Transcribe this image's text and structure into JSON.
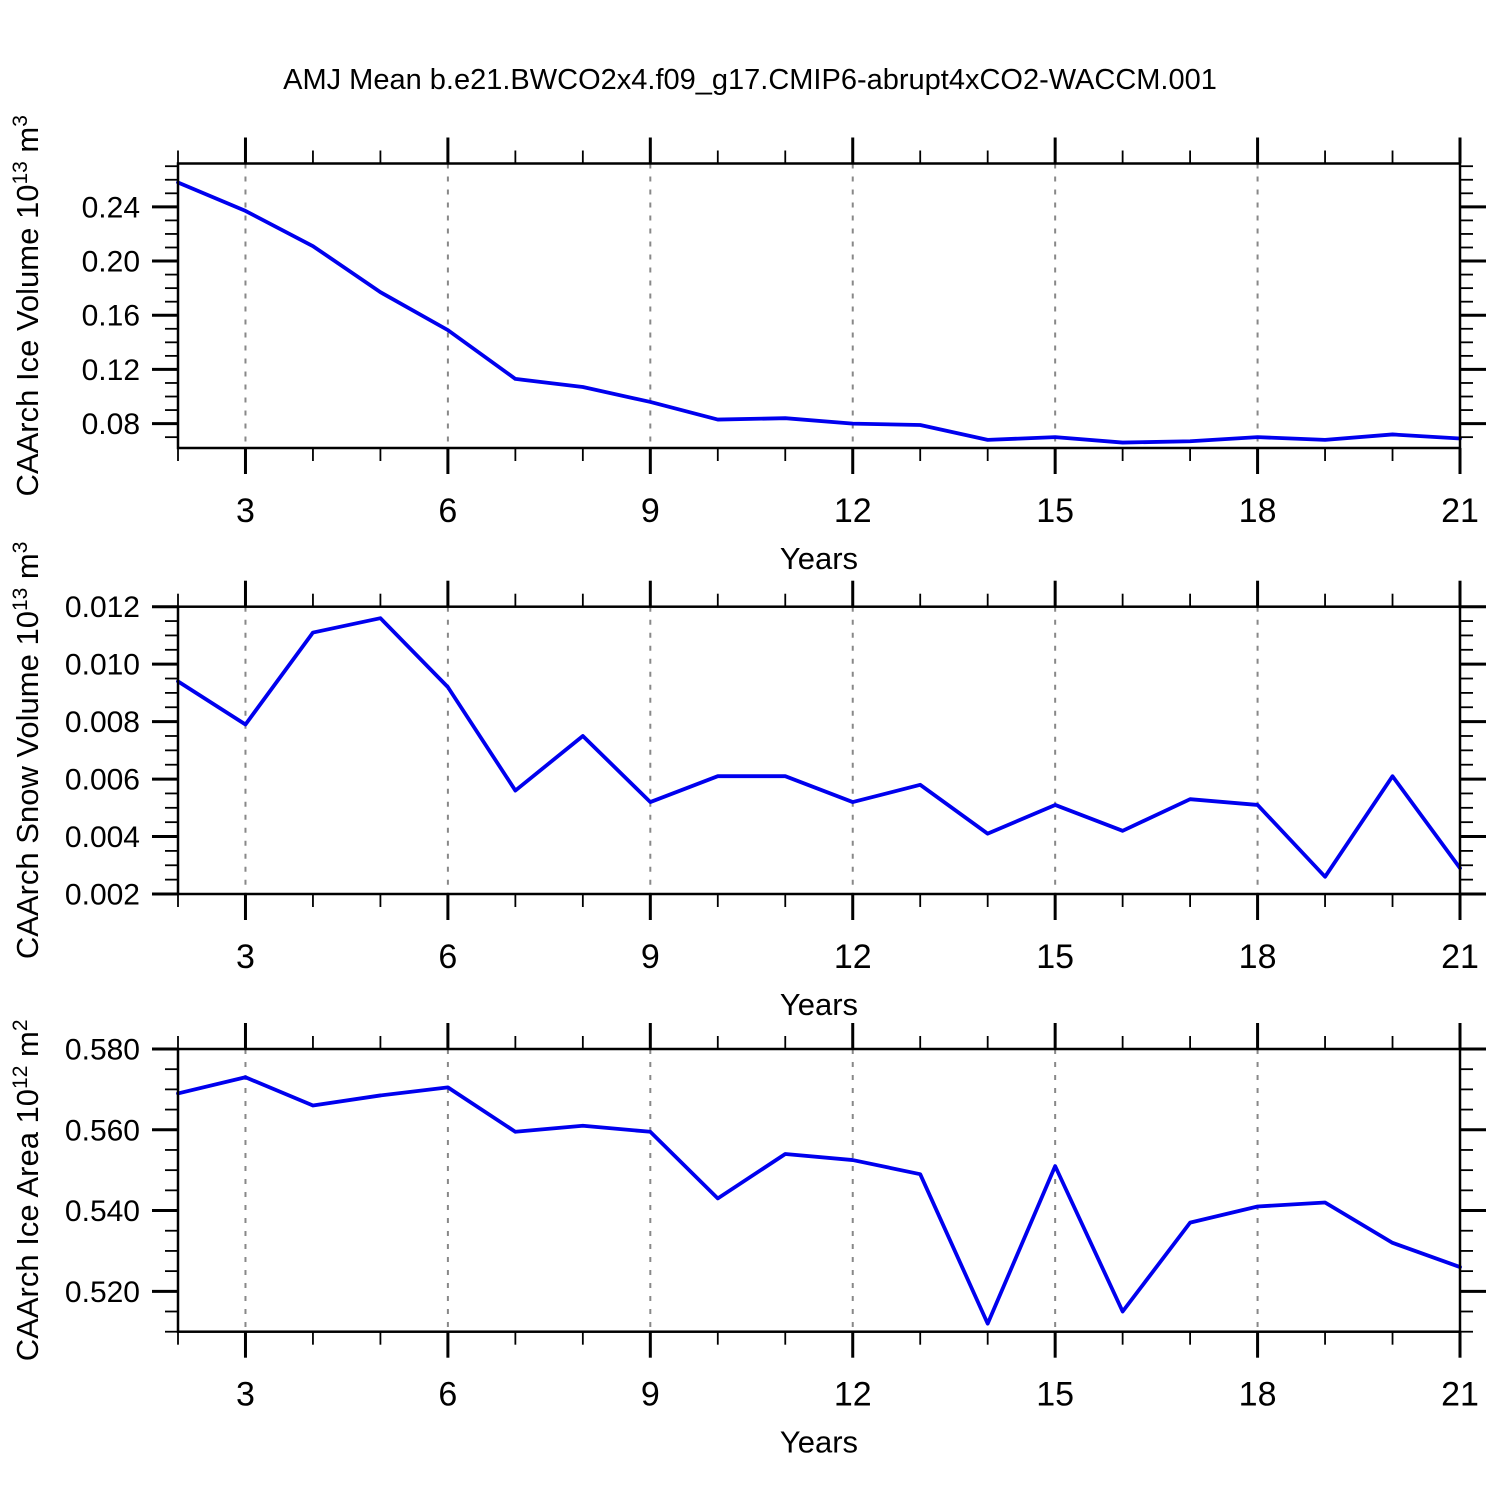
{
  "title": "AMJ Mean b.e21.BWCO2x4.f09_g17.CMIP6-abrupt4xCO2-WACCM.001",
  "colors": {
    "line": "#0000EE",
    "grid": "#888888",
    "axis": "#000000",
    "text": "#000000",
    "background": "#FFFFFF"
  },
  "chart_data": [
    {
      "type": "line",
      "id": "ice-volume",
      "ylabel_text": "CAArch Ice Volume 10^13 m^3",
      "ylabel_parts": [
        {
          "text": "CAArch Ice Volume 10"
        },
        {
          "text": "13",
          "sup": true
        },
        {
          "text": " m"
        },
        {
          "text": "3",
          "sup": true
        }
      ],
      "xlabel": "Years",
      "x": [
        2,
        3,
        4,
        5,
        6,
        7,
        8,
        9,
        10,
        11,
        12,
        13,
        14,
        15,
        16,
        17,
        18,
        19,
        20,
        21
      ],
      "values": [
        0.258,
        0.237,
        0.211,
        0.177,
        0.149,
        0.113,
        0.107,
        0.096,
        0.083,
        0.084,
        0.08,
        0.079,
        0.068,
        0.07,
        0.066,
        0.067,
        0.07,
        0.068,
        0.072,
        0.069
      ],
      "xlim": [
        2,
        21
      ],
      "ylim": [
        0.062,
        0.272
      ],
      "ymajor": [
        0.08,
        0.12,
        0.16,
        0.2,
        0.24
      ],
      "yminor_step": 0.01,
      "ydecimals": 2,
      "xmajor": [
        3,
        6,
        9,
        12,
        15,
        18,
        21
      ],
      "xminor_step": 1,
      "grid_x": [
        3,
        6,
        9,
        12,
        15,
        18
      ],
      "grid": true,
      "legend": "none"
    },
    {
      "type": "line",
      "id": "snow-volume",
      "ylabel_text": "CAArch Snow Volume 10^13 m^3",
      "ylabel_parts": [
        {
          "text": "CAArch Snow Volume 10"
        },
        {
          "text": "13",
          "sup": true
        },
        {
          "text": " m"
        },
        {
          "text": "3",
          "sup": true
        }
      ],
      "xlabel": "Years",
      "x": [
        2,
        3,
        4,
        5,
        6,
        7,
        8,
        9,
        10,
        11,
        12,
        13,
        14,
        15,
        16,
        17,
        18,
        19,
        20,
        21
      ],
      "values": [
        0.0094,
        0.0079,
        0.0111,
        0.0116,
        0.0092,
        0.0056,
        0.0075,
        0.0052,
        0.0061,
        0.0061,
        0.0052,
        0.0058,
        0.0041,
        0.0051,
        0.0042,
        0.0053,
        0.0051,
        0.0026,
        0.0061,
        0.0029
      ],
      "xlim": [
        2,
        21
      ],
      "ylim": [
        0.002,
        0.012
      ],
      "ymajor": [
        0.002,
        0.004,
        0.006,
        0.008,
        0.01,
        0.012
      ],
      "yminor_step": 0.0005,
      "ydecimals": 3,
      "xmajor": [
        3,
        6,
        9,
        12,
        15,
        18,
        21
      ],
      "xminor_step": 1,
      "grid_x": [
        3,
        6,
        9,
        12,
        15,
        18
      ],
      "grid": true,
      "legend": "none"
    },
    {
      "type": "line",
      "id": "ice-area",
      "ylabel_text": "CAArch Ice Area 10^12 m^2",
      "ylabel_parts": [
        {
          "text": "CAArch Ice Area 10"
        },
        {
          "text": "12",
          "sup": true
        },
        {
          "text": " m"
        },
        {
          "text": "2",
          "sup": true
        }
      ],
      "xlabel": "Years",
      "x": [
        2,
        3,
        4,
        5,
        6,
        7,
        8,
        9,
        10,
        11,
        12,
        13,
        14,
        15,
        16,
        17,
        18,
        19,
        20,
        21
      ],
      "values": [
        0.569,
        0.573,
        0.566,
        0.5685,
        0.5705,
        0.5595,
        0.561,
        0.5595,
        0.543,
        0.554,
        0.5525,
        0.549,
        0.512,
        0.551,
        0.515,
        0.537,
        0.541,
        0.542,
        0.532,
        0.526
      ],
      "xlim": [
        2,
        21
      ],
      "ylim": [
        0.51,
        0.58
      ],
      "ymajor": [
        0.52,
        0.54,
        0.56,
        0.58
      ],
      "yminor_step": 0.005,
      "ydecimals": 3,
      "xmajor": [
        3,
        6,
        9,
        12,
        15,
        18,
        21
      ],
      "xminor_step": 1,
      "grid_x": [
        3,
        6,
        9,
        12,
        15,
        18
      ],
      "grid": true,
      "legend": "none"
    }
  ]
}
